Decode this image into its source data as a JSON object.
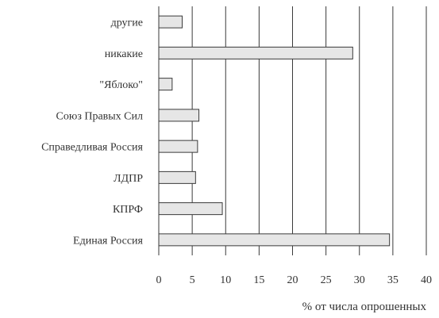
{
  "chart_data": {
    "type": "bar",
    "orientation": "horizontal",
    "categories": [
      "другие",
      "никакие",
      "\"Яблоко\"",
      "Союз Правых Сил",
      "Справедливая Россия",
      "ЛДПР",
      "КПРФ",
      "Единая Россия"
    ],
    "values": [
      3.5,
      29,
      2,
      6,
      5.8,
      5.5,
      9.5,
      34.5
    ],
    "xlim": [
      0,
      40
    ],
    "x_ticks": [
      "0",
      "5",
      "10",
      "15",
      "20",
      "25",
      "30",
      "35",
      "40"
    ],
    "xlabel": "% от числа опрошенных",
    "ylabel": "",
    "grid": "vertical",
    "legend": "none",
    "colors": {
      "bar_fill": "#e6e6e6",
      "grid": "#3a3a3a",
      "text": "#333333"
    }
  }
}
